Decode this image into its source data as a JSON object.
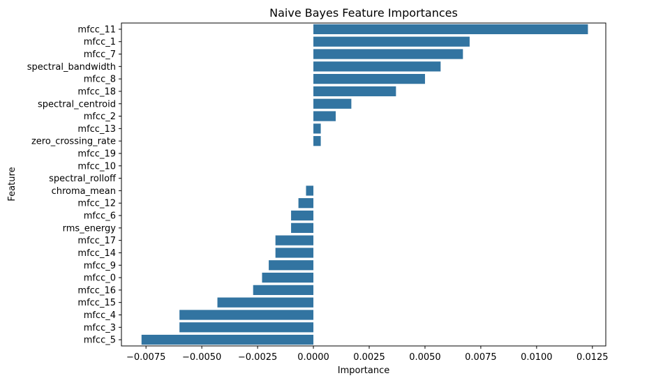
{
  "chart_data": {
    "type": "bar",
    "orientation": "horizontal",
    "title": "Naive Bayes Feature Importances",
    "xlabel": "Importance",
    "ylabel": "Feature",
    "xlim": [
      -0.0086,
      0.0131
    ],
    "xticks": [
      -0.0075,
      -0.005,
      -0.0025,
      0.0,
      0.0025,
      0.005,
      0.0075,
      0.01,
      0.0125
    ],
    "xtick_labels": [
      "−0.0075",
      "−0.0050",
      "−0.0025",
      "0.0000",
      "0.0025",
      "0.0050",
      "0.0075",
      "0.0100",
      "0.0125"
    ],
    "grid": false,
    "bar_color": "#3274a1",
    "categories": [
      "mfcc_11",
      "mfcc_1",
      "mfcc_7",
      "spectral_bandwidth",
      "mfcc_8",
      "mfcc_18",
      "spectral_centroid",
      "mfcc_2",
      "mfcc_13",
      "zero_crossing_rate",
      "mfcc_19",
      "mfcc_10",
      "spectral_rolloff",
      "chroma_mean",
      "mfcc_12",
      "mfcc_6",
      "rms_energy",
      "mfcc_17",
      "mfcc_14",
      "mfcc_9",
      "mfcc_0",
      "mfcc_16",
      "mfcc_15",
      "mfcc_4",
      "mfcc_3",
      "mfcc_5"
    ],
    "values": [
      0.0123,
      0.007,
      0.0067,
      0.0057,
      0.005,
      0.0037,
      0.0017,
      0.001,
      0.00033,
      0.00033,
      0.0,
      0.0,
      0.0,
      -0.00033,
      -0.00067,
      -0.001,
      -0.001,
      -0.0017,
      -0.0017,
      -0.002,
      -0.0023,
      -0.0027,
      -0.0043,
      -0.006,
      -0.006,
      -0.0077
    ]
  }
}
